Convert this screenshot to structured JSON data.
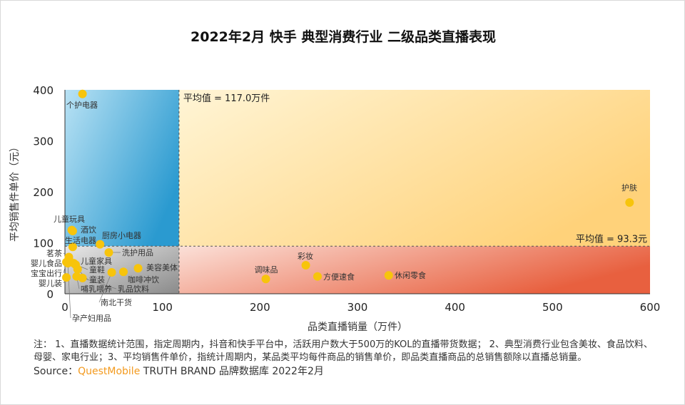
{
  "chart_data": {
    "type": "scatter",
    "title": "2022年2月 快手 典型消费行业 二级品类直播表现",
    "xlabel": "品类直播销量（万件）",
    "ylabel": "平均销售件单价（元）",
    "xlim": [
      0,
      600
    ],
    "ylim": [
      0,
      400
    ],
    "xticks": [
      "0",
      "100",
      "200",
      "300",
      "400",
      "500",
      "600"
    ],
    "yticks": [
      "0",
      "100",
      "200",
      "300",
      "400"
    ],
    "x_mean": 117.0,
    "y_mean": 93.3,
    "x_mean_label": "平均值 = 117.0万件",
    "y_mean_label": "平均值 = 93.3元",
    "point_color": "#f7c40c",
    "quadrant_colors": {
      "top_left": "#3aa6d6",
      "top_right": "#ffd980",
      "bottom_left": "#a9a9a9",
      "bottom_right": "#ea6a4c"
    },
    "points": [
      {
        "label": "个护电器",
        "x": 18,
        "y": 392
      },
      {
        "label": "护肤",
        "x": 579,
        "y": 179
      },
      {
        "label": "彩妆",
        "x": 247,
        "y": 56
      },
      {
        "label": "调味品",
        "x": 206,
        "y": 29
      },
      {
        "label": "方便速食",
        "x": 259,
        "y": 34
      },
      {
        "label": "休闲零食",
        "x": 332,
        "y": 36
      },
      {
        "label": "儿童玩具",
        "x": 7,
        "y": 125
      },
      {
        "label": "酒饮",
        "x": 8,
        "y": 123
      },
      {
        "label": "生活电器",
        "x": 8,
        "y": 92
      },
      {
        "label": "厨房小电器",
        "x": 36,
        "y": 97
      },
      {
        "label": "洗护用品",
        "x": 45,
        "y": 81
      },
      {
        "label": "茗茶",
        "x": 4,
        "y": 72
      },
      {
        "label": "婴儿食品",
        "x": 4,
        "y": 69
      },
      {
        "label": "宝宝出行",
        "x": 1.5,
        "y": 62
      },
      {
        "label": "儿童家具",
        "x": 9,
        "y": 60
      },
      {
        "label": "童鞋",
        "x": 11,
        "y": 57
      },
      {
        "label": "童装",
        "x": 13,
        "y": 48
      },
      {
        "label": "美容美体",
        "x": 75,
        "y": 50
      },
      {
        "label": "咖啡冲饮",
        "x": 60,
        "y": 43
      },
      {
        "label": "南北干货",
        "x": 48,
        "y": 42
      },
      {
        "label": "婴儿装",
        "x": 1.5,
        "y": 32
      },
      {
        "label": "孕产妇用品",
        "x": 3,
        "y": 60
      },
      {
        "label": "哺乳喂养",
        "x": 12,
        "y": 34
      },
      {
        "label": "乳品饮料",
        "x": 18,
        "y": 31
      }
    ]
  },
  "note": "注： 1、直播数据统计范围，指定周期内，抖音和快手平台中，活跃用户数大于500万的KOL的直播带货数据； 2、典型消费行业包含美妆、食品饮料、母婴、家电行业；3、平均销售件单价，指统计周期内，某品类平均每件商品的销售单价，即品类直播商品的总销售额除以直播总销量。",
  "source_prefix": "Source：",
  "source_brand": "QuestMobile",
  "source_rest": " TRUTH BRAND 品牌数据库 2022年2月"
}
